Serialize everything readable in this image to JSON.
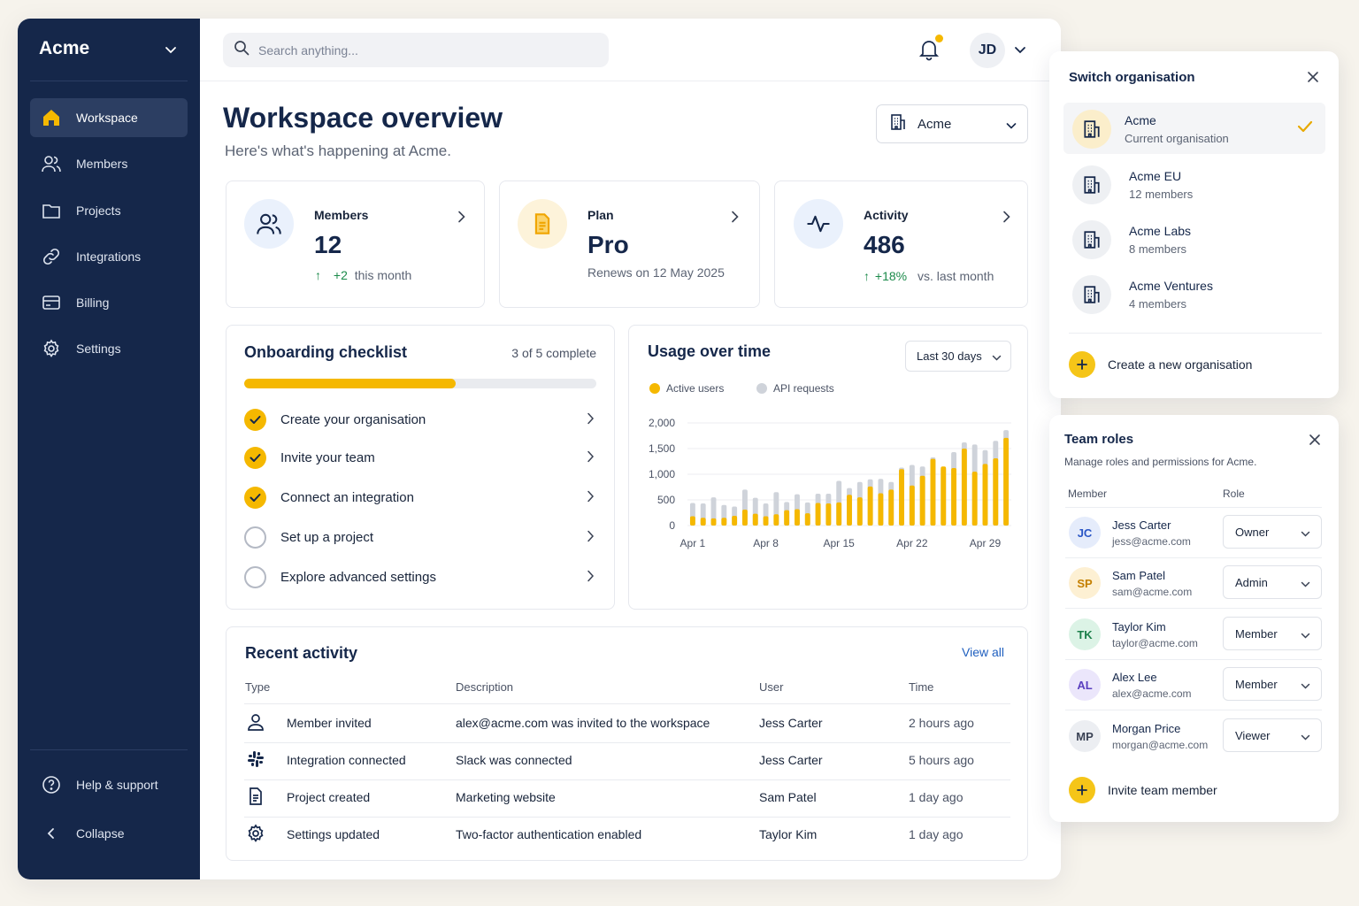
{
  "sidebar": {
    "brand": "Acme",
    "nav": [
      {
        "label": "Workspace",
        "icon": "home-icon",
        "active": true
      },
      {
        "label": "Members",
        "icon": "users-icon"
      },
      {
        "label": "Projects",
        "icon": "folder-icon"
      },
      {
        "label": "Integrations",
        "icon": "link-icon"
      },
      {
        "label": "Billing",
        "icon": "credit-card-icon"
      },
      {
        "label": "Settings",
        "icon": "gear-icon"
      }
    ],
    "help_label": "Help & support",
    "collapse_label": "Collapse"
  },
  "topbar": {
    "search_placeholder": "Search anything...",
    "avatar_initials": "JD",
    "notification_dot_color": "#f5b800"
  },
  "header": {
    "title": "Workspace overview",
    "subtitle": "Here's what's happening at Acme.",
    "org_selector": "Acme"
  },
  "stats": {
    "members": {
      "label": "Members",
      "value": "12",
      "delta": "+2",
      "delta_suffix": "this month"
    },
    "plan": {
      "label": "Plan",
      "value": "Pro",
      "sub": "Renews on 12 May 2025"
    },
    "activity": {
      "label": "Activity",
      "value": "486",
      "delta": "+18%",
      "delta_suffix": "vs. last month"
    }
  },
  "checklist": {
    "title": "Onboarding checklist",
    "progress_text": "3 of 5 complete",
    "progress_fraction": 0.6,
    "items": [
      {
        "label": "Create your organisation",
        "done": true
      },
      {
        "label": "Invite your team",
        "done": true
      },
      {
        "label": "Connect an integration",
        "done": true
      },
      {
        "label": "Set up a project",
        "done": false
      },
      {
        "label": "Explore advanced settings",
        "done": false
      }
    ]
  },
  "usage": {
    "title": "Usage over time",
    "range": "Last 30 days",
    "legend_active": "Active users",
    "legend_api": "API requests"
  },
  "chart_data": {
    "type": "bar",
    "title": "Usage over time",
    "x_tick_labels": [
      "Apr 1",
      "Apr 8",
      "Apr 15",
      "Apr 22",
      "Apr 29"
    ],
    "y_ticks": [
      0,
      500,
      1000,
      1500,
      2000
    ],
    "ylim": [
      0,
      2000
    ],
    "grid": true,
    "legend": "top-left",
    "stacked": "overlay",
    "series": [
      {
        "name": "Active users",
        "color": "#f5b800",
        "values": [
          180,
          150,
          140,
          150,
          190,
          310,
          230,
          180,
          220,
          300,
          320,
          240,
          440,
          430,
          450,
          600,
          550,
          760,
          630,
          700,
          1100,
          780,
          970,
          1300,
          1150,
          1120,
          1500,
          1050,
          1200,
          1310,
          1710
        ]
      },
      {
        "name": "API requests",
        "color": "#cfd3da",
        "values": [
          440,
          430,
          550,
          400,
          370,
          700,
          540,
          430,
          650,
          460,
          610,
          450,
          620,
          620,
          870,
          730,
          850,
          900,
          910,
          850,
          1130,
          1180,
          1150,
          1330,
          1120,
          1430,
          1620,
          1580,
          1470,
          1650,
          1860
        ]
      }
    ]
  },
  "activity": {
    "title": "Recent activity",
    "view_all": "View all",
    "columns": [
      "Type",
      "Description",
      "User",
      "Time"
    ],
    "rows": [
      {
        "icon": "user-icon",
        "type": "Member invited",
        "description": "alex@acme.com was invited to the workspace",
        "user": "Jess Carter",
        "time": "2 hours ago"
      },
      {
        "icon": "slack-icon",
        "type": "Integration connected",
        "description": "Slack was connected",
        "user": "Jess Carter",
        "time": "5 hours ago"
      },
      {
        "icon": "document-icon",
        "type": "Project created",
        "description": "Marketing website",
        "user": "Sam Patel",
        "time": "1 day ago"
      },
      {
        "icon": "gear-icon",
        "type": "Settings updated",
        "description": "Two-factor authentication enabled",
        "user": "Taylor Kim",
        "time": "1 day ago"
      }
    ]
  },
  "switch_org": {
    "title": "Switch organisation",
    "orgs": [
      {
        "name": "Acme",
        "sub": "Current organisation",
        "current": true
      },
      {
        "name": "Acme EU",
        "sub": "12 members"
      },
      {
        "name": "Acme Labs",
        "sub": "8 members"
      },
      {
        "name": "Acme Ventures",
        "sub": "4 members"
      }
    ],
    "create_label": "Create a new organisation"
  },
  "team_roles": {
    "title": "Team roles",
    "subtitle": "Manage roles and permissions for Acme.",
    "col_member": "Member",
    "col_role": "Role",
    "members": [
      {
        "initials": "JC",
        "name": "Jess Carter",
        "email": "jess@acme.com",
        "role": "Owner",
        "bg": "#e5ecfb",
        "fg": "#2a56c6"
      },
      {
        "initials": "SP",
        "name": "Sam Patel",
        "email": "sam@acme.com",
        "role": "Admin",
        "bg": "#fdf0d3",
        "fg": "#c47f00"
      },
      {
        "initials": "TK",
        "name": "Taylor Kim",
        "email": "taylor@acme.com",
        "role": "Member",
        "bg": "#dcf3e6",
        "fg": "#1b7f4a"
      },
      {
        "initials": "AL",
        "name": "Alex Lee",
        "email": "alex@acme.com",
        "role": "Member",
        "bg": "#ebe6fb",
        "fg": "#5a3fbf"
      },
      {
        "initials": "MP",
        "name": "Morgan Price",
        "email": "morgan@acme.com",
        "role": "Viewer",
        "bg": "#eceef2",
        "fg": "#3a4254"
      }
    ],
    "invite_label": "Invite team member"
  }
}
